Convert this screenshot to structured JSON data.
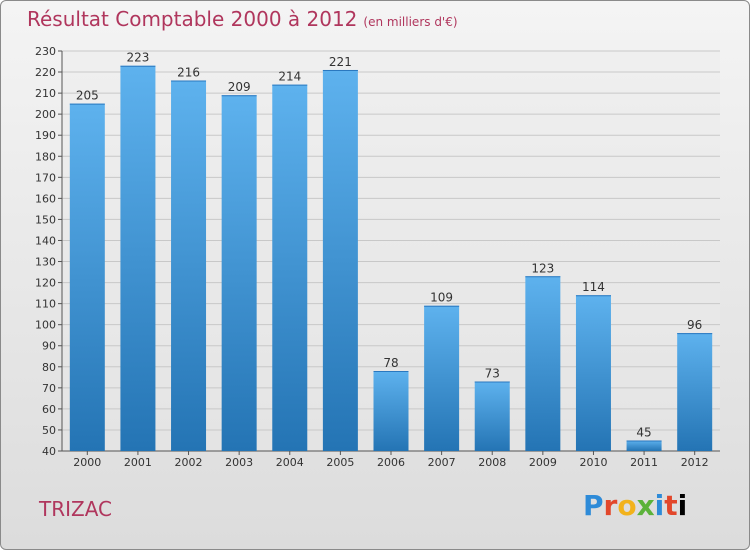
{
  "header": {
    "title": "Résultat Comptable 2000 à 2012",
    "unit": "(en milliers d'€)"
  },
  "footer": {
    "place": "TRIZAC",
    "logo": "Proxiti"
  },
  "colors": {
    "title": "#b0365d",
    "bar_light": "#5eb2ee",
    "bar_dark": "#2474b4",
    "grid": "#c8c8c8"
  },
  "chart_data": {
    "type": "bar",
    "categories": [
      "2000",
      "2001",
      "2002",
      "2003",
      "2004",
      "2005",
      "2006",
      "2007",
      "2008",
      "2009",
      "2010",
      "2011",
      "2012"
    ],
    "values": [
      205,
      223,
      216,
      209,
      214,
      221,
      78,
      109,
      73,
      123,
      114,
      45,
      96
    ],
    "ylim": [
      40,
      230
    ],
    "yticks": [
      40,
      50,
      60,
      70,
      80,
      90,
      100,
      110,
      120,
      130,
      140,
      150,
      160,
      170,
      180,
      190,
      200,
      210,
      220,
      230
    ],
    "grid": true,
    "legend": "none"
  }
}
